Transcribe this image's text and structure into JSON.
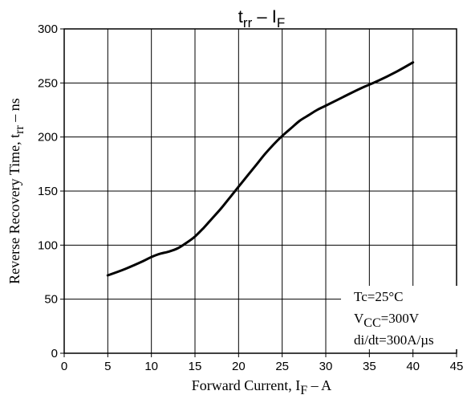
{
  "chart_data": {
    "type": "line",
    "title": {
      "main": "t",
      "main_sub": "rr",
      "sep": "  –  I",
      "sep_sub": "F"
    },
    "xlabel": {
      "pre": "Forward Current, I",
      "sub": "F",
      "post": "  –  A"
    },
    "ylabel": {
      "pre": "Reverse Recovery Time, t",
      "sub": "rr",
      "post": "  –  ns"
    },
    "xlim": [
      0,
      45
    ],
    "ylim": [
      0,
      300
    ],
    "xticks": [
      "0",
      "5",
      "10",
      "15",
      "20",
      "25",
      "30",
      "35",
      "40",
      "45"
    ],
    "yticks": [
      "0",
      "50",
      "100",
      "150",
      "200",
      "250",
      "300"
    ],
    "grid": true,
    "series": [
      {
        "x": [
          5,
          7,
          9,
          10,
          11,
          12,
          13,
          14,
          15,
          16,
          17,
          18,
          19,
          20,
          21,
          22,
          23,
          24,
          25,
          26,
          27,
          28,
          29,
          30,
          32,
          34,
          36,
          38,
          40
        ],
        "y": [
          72,
          78,
          85,
          89,
          92,
          94,
          97,
          102,
          108,
          116,
          125,
          134,
          144,
          154,
          164,
          174,
          184,
          193,
          201,
          208,
          215,
          220,
          225,
          229,
          237,
          245,
          252,
          260,
          269
        ]
      }
    ],
    "annotation": {
      "line1": "Tc=25°C",
      "line2_pre": "V",
      "line2_sub": "CC",
      "line2_post": "=300V",
      "line3": "di/dt=300A/µs"
    },
    "colors": {
      "line": "#000000",
      "grid": "#000000"
    }
  }
}
